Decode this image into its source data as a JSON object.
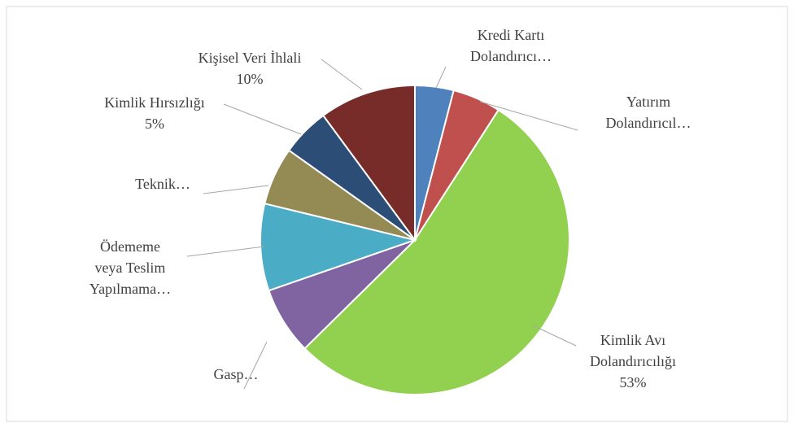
{
  "chart_data": {
    "type": "pie",
    "labels": [
      [
        "Kredi Kartı",
        "Dolandırıcı…"
      ],
      [
        "Yatırım",
        "Dolandırıcıl…"
      ],
      [
        "Kimlik Avı",
        "Dolandırıcılığı"
      ],
      [
        "Gasp…"
      ],
      [
        "Ödememe",
        "veya Teslim",
        "Yapılmama…"
      ],
      [
        "Teknik…"
      ],
      [
        "Kimlik Hırsızlığı"
      ],
      [
        "Kişisel Veri İhlali"
      ]
    ],
    "values": [
      4,
      5,
      53,
      7,
      9,
      6,
      5,
      10
    ],
    "value_labels": [
      null,
      null,
      "53%",
      null,
      null,
      null,
      "5%",
      "10%"
    ],
    "colors": [
      "#4f81bd",
      "#c0504d",
      "#92d050",
      "#8064a2",
      "#4bacc6",
      "#948a54",
      "#2c4d75",
      "#772c2a"
    ]
  }
}
